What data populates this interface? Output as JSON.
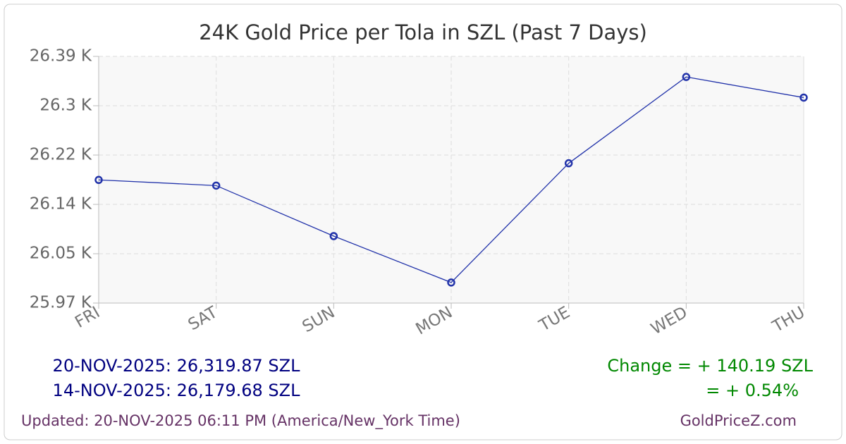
{
  "chart_data": {
    "type": "line",
    "title": "24K Gold Price per Tola in SZL (Past 7 Days)",
    "categories": [
      "FRI",
      "SAT",
      "SUN",
      "MON",
      "TUE",
      "WED",
      "THU"
    ],
    "series": [
      {
        "name": "24K Gold Price per Tola",
        "color": "#2233aa",
        "values": [
          26179.68,
          26170,
          26084,
          26005,
          26208,
          26355,
          26319.87
        ]
      }
    ],
    "ylim": [
      25970,
      26390
    ],
    "yticks": [
      {
        "value": 25970,
        "label": "25.97 K"
      },
      {
        "value": 26054,
        "label": "26.05 K"
      },
      {
        "value": 26138,
        "label": "26.14 K"
      },
      {
        "value": 26222,
        "label": "26.22 K"
      },
      {
        "value": 26306,
        "label": "26.3 K"
      },
      {
        "value": 26390,
        "label": "26.39 K"
      }
    ],
    "grid": true
  },
  "footer": {
    "latest": "20-NOV-2025: 26,319.87 SZL",
    "earliest": "14-NOV-2025: 26,179.68 SZL",
    "change": "Change = + 140.19 SZL",
    "change_pct": "= + 0.54%",
    "updated": "Updated: 20-NOV-2025 06:11 PM (America/New_York Time)",
    "source": "GoldPriceZ.com"
  }
}
